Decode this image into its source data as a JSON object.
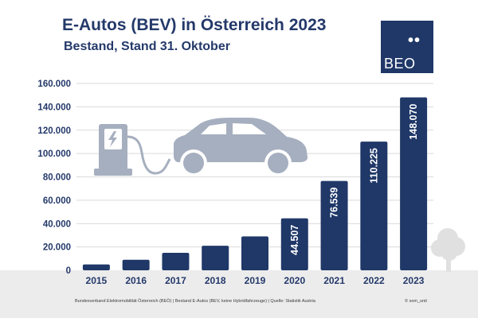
{
  "header": {
    "title": "E-Autos (BEV) in Österreich 2023",
    "subtitle": "Bestand, Stand 31. Oktober"
  },
  "logo": {
    "dots": "••",
    "text": "BEO"
  },
  "footer": {
    "source": "Bundesverband Elektromobilität Österreich (BEÖ) | Bestand E-Autos (BEV, keine Hybridfahrzeuge) | Quelle: Statistik Austria",
    "credit": "© som_unit"
  },
  "colors": {
    "bar": "#1f3868",
    "text": "#24396a",
    "grid": "#d9d9d9",
    "ground": "#ececec",
    "illustration": "#a6afbf"
  },
  "icons": [
    "ev-charger-icon",
    "car-icon",
    "tree-icon"
  ],
  "chart_data": {
    "type": "bar",
    "categories": [
      "2015",
      "2016",
      "2017",
      "2018",
      "2019",
      "2020",
      "2021",
      "2022",
      "2023"
    ],
    "values": [
      5000,
      9000,
      15000,
      21000,
      29000,
      44507,
      76539,
      110225,
      148070
    ],
    "data_labels": [
      "",
      "",
      "",
      "",
      "",
      "44.507",
      "76.539",
      "110.225",
      "148.070"
    ],
    "yticks": [
      "0",
      "20.000",
      "40.000",
      "60.000",
      "80.000",
      "100.000",
      "120.000",
      "140.000",
      "160.000"
    ],
    "ylim": [
      0,
      160000
    ],
    "grid": true,
    "legend": "none"
  }
}
